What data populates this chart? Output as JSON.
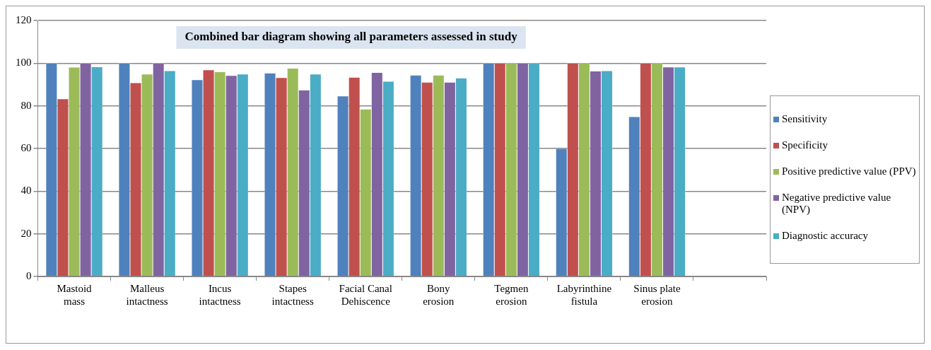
{
  "chart_data": {
    "type": "bar",
    "title": "Combined bar diagram showing all parameters assessed in study",
    "categories": [
      "Mastoid mass",
      "Malleus intactness",
      "Incus intactness",
      "Stapes intactness",
      "Facial Canal Dehiscence",
      "Bony erosion",
      "Tegmen erosion",
      "Labyrinthine fistula",
      "Sinus plate erosion",
      null
    ],
    "series": [
      {
        "name": "Sensitivity",
        "color": "#4f81bd",
        "values": [
          100,
          100,
          92.2,
          95.4,
          84.6,
          94.4,
          100,
          60,
          74.9,
          null
        ]
      },
      {
        "name": "Specificity",
        "color": "#c0504d",
        "values": [
          83.3,
          90.8,
          96.9,
          93.2,
          93.4,
          91.1,
          100,
          100,
          100,
          null
        ]
      },
      {
        "name": "Positive predictive value (PPV)",
        "color": "#9bbb59",
        "values": [
          98.1,
          94.9,
          96.0,
          97.6,
          78.5,
          94.4,
          100,
          100,
          100,
          null
        ]
      },
      {
        "name": "Negative predictive value (NPV)",
        "color": "#8064a2",
        "values": [
          100,
          100,
          94.2,
          87.4,
          95.6,
          91.1,
          100,
          96.3,
          98.2,
          null
        ]
      },
      {
        "name": "Diagnostic accuracy",
        "color": "#4bacc6",
        "values": [
          98.3,
          96.5,
          94.9,
          94.9,
          91.5,
          93.1,
          100,
          96.5,
          98.2,
          null
        ]
      }
    ],
    "ylim": [
      0,
      120
    ],
    "yticks": [
      0,
      20,
      40,
      60,
      80,
      100,
      120
    ],
    "grid": "y",
    "legend": "right"
  }
}
